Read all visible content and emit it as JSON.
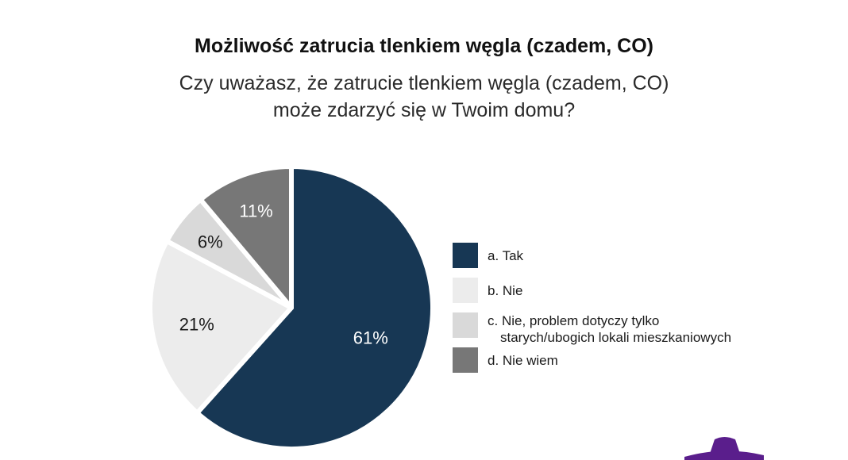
{
  "header": {
    "title": "Możliwość zatrucia tlenkiem węgla (czadem, CO)",
    "subtitle_line1": "Czy uważasz, że zatrucie tlenkiem węgla (czadem, CO)",
    "subtitle_line2": "może zdarzyć się w Twoim domu?"
  },
  "chart_data": {
    "type": "pie",
    "title": "Możliwość zatrucia tlenkiem węgla (czadem, CO)",
    "subtitle": "Czy uważasz, że zatrucie tlenkiem węgla (czadem, CO) może zdarzyć się w Twoim domu?",
    "legend_position": "right",
    "slices": [
      {
        "label": "a. Tak",
        "value": 61,
        "value_label": "61%",
        "color": "#173754",
        "text_color": "#ffffff"
      },
      {
        "label": "b. Nie",
        "value": 21,
        "value_label": "21%",
        "color": "#ececec",
        "text_color": "#1a1a1a"
      },
      {
        "label": "c. Nie, problem dotyczy tylko starych/ubogich lokali mieszkaniowych",
        "value": 6,
        "value_label": "6%",
        "color": "#d9d9d9",
        "text_color": "#1a1a1a"
      },
      {
        "label": "d. Nie wiem",
        "value": 11,
        "value_label": "11%",
        "color": "#777777",
        "text_color": "#ffffff"
      }
    ]
  },
  "legend": {
    "items": [
      {
        "line1": "a. Tak",
        "line2": "",
        "color": "#173754"
      },
      {
        "line1": "b. Nie",
        "line2": "",
        "color": "#ececec"
      },
      {
        "line1": "c. Nie, problem dotyczy tylko",
        "line2": "starych/ubogich lokali mieszkaniowych",
        "color": "#d9d9d9"
      },
      {
        "line1": "d. Nie wiem",
        "line2": "",
        "color": "#777777"
      }
    ]
  },
  "decoration": {
    "hat_color": "#5a1e8c"
  }
}
